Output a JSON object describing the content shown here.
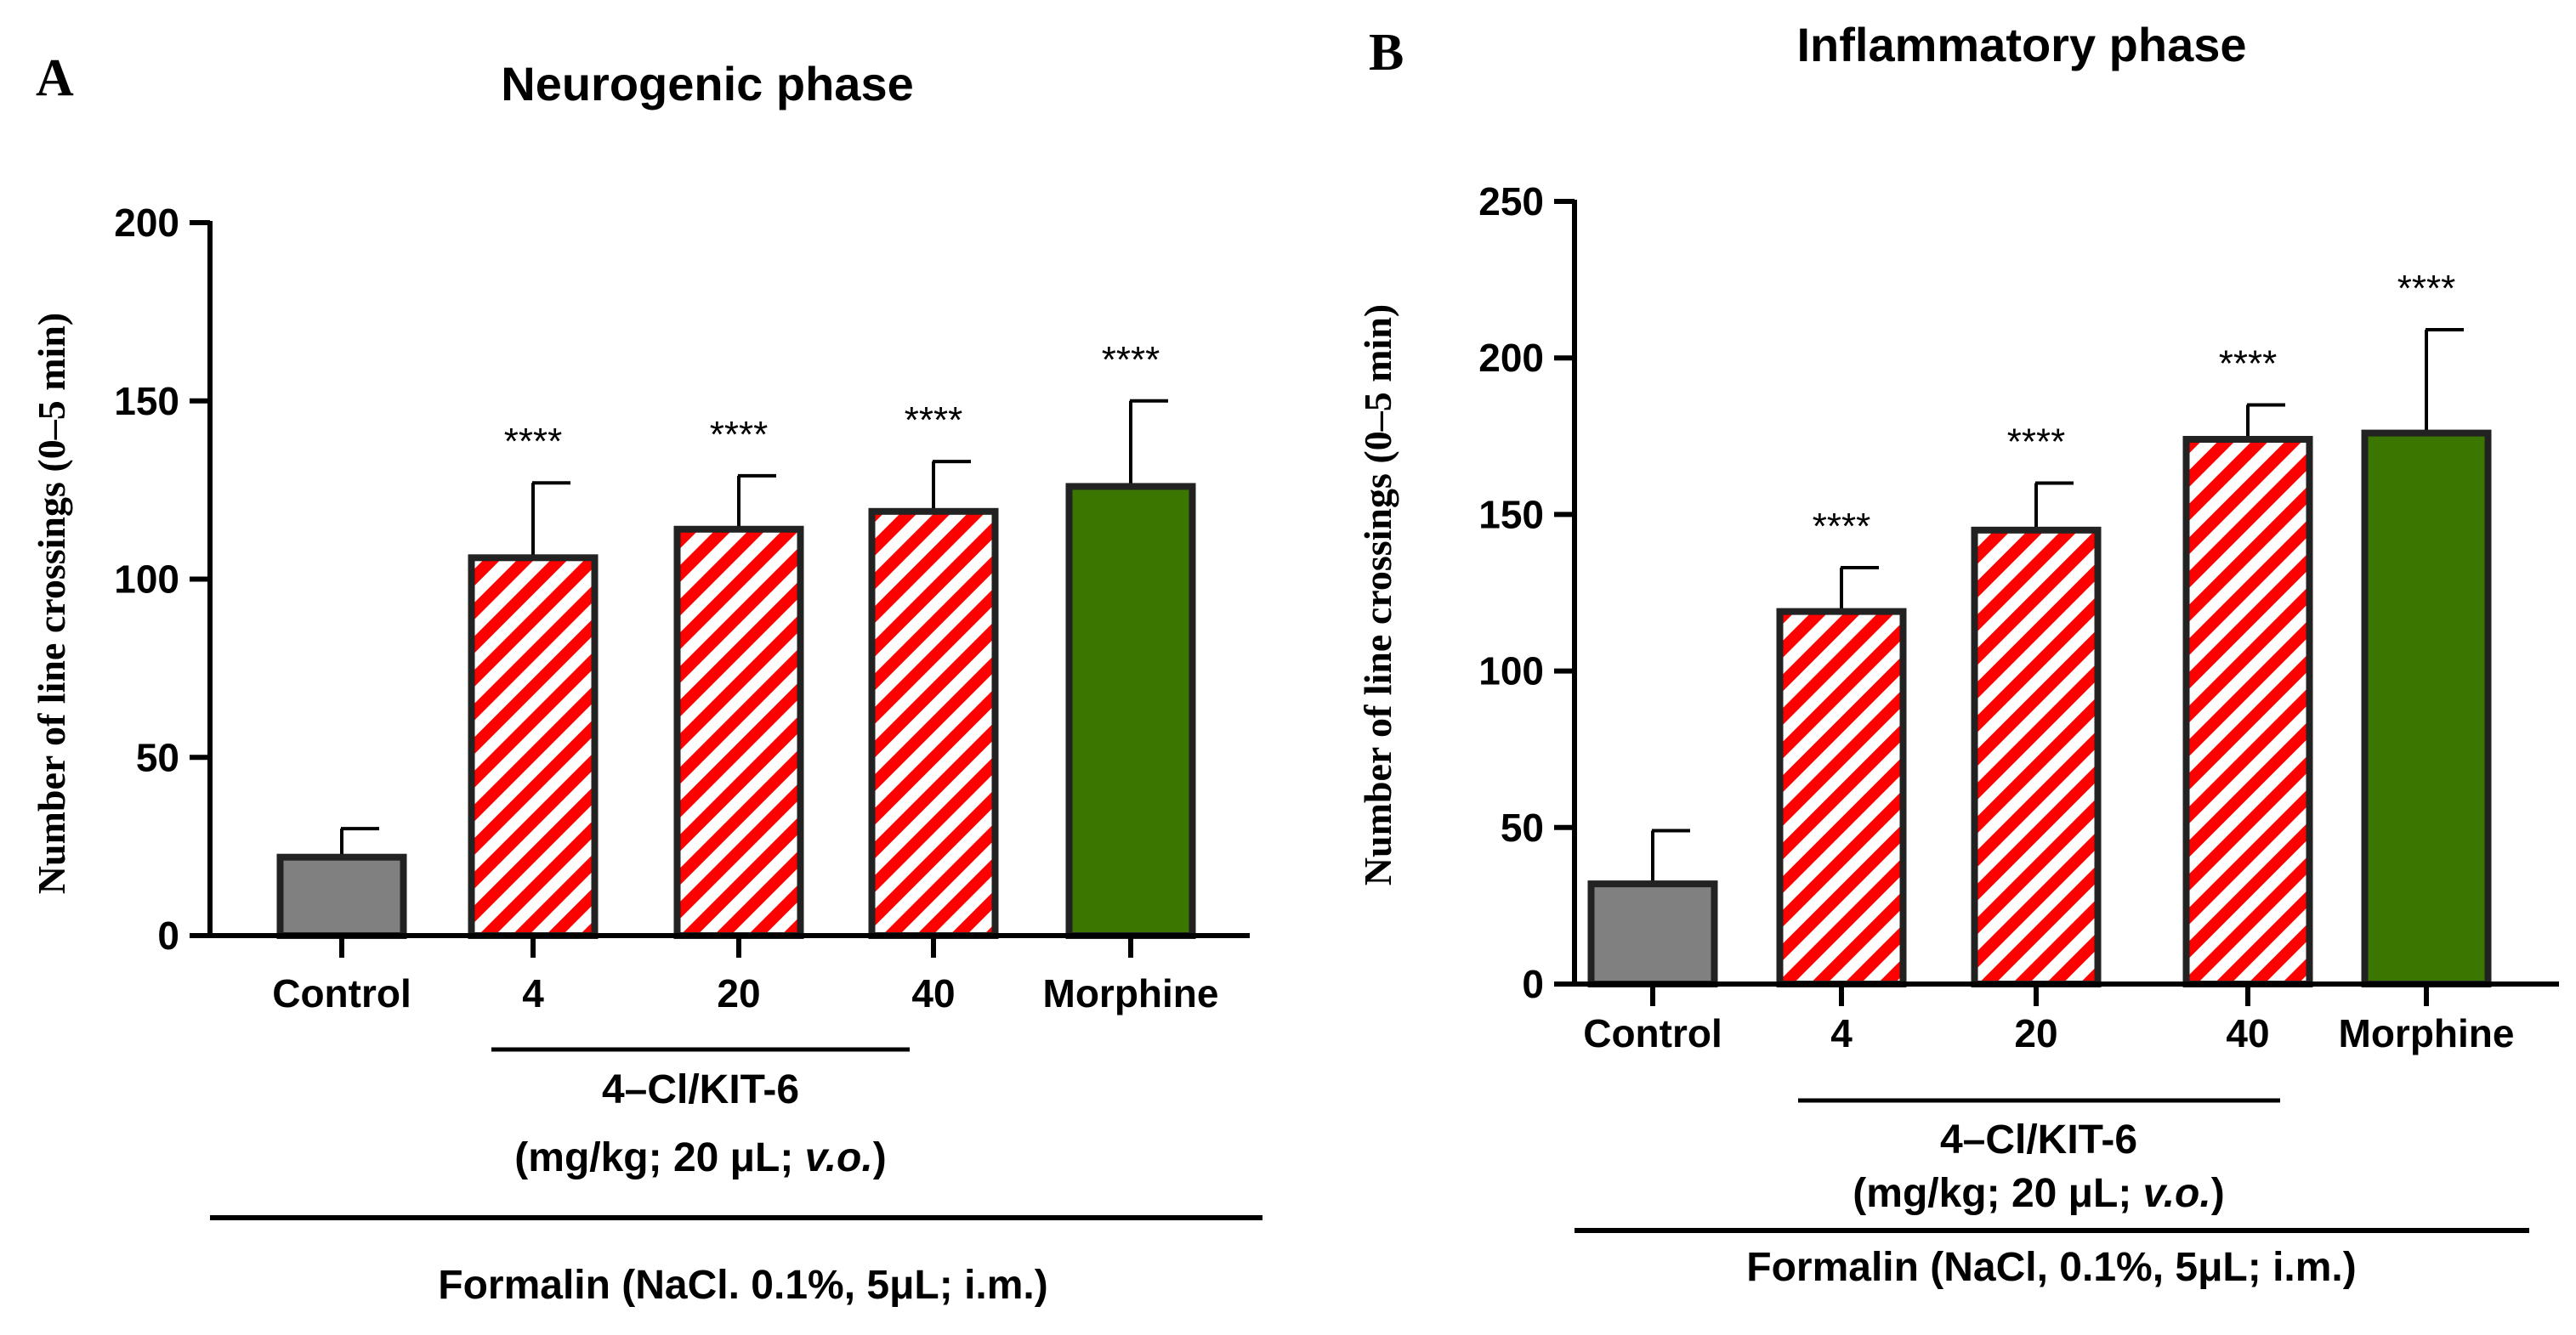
{
  "colors": {
    "control": "#808080",
    "treatment_stripe_red": "#ff0000",
    "treatment_stripe_white": "#ffffff",
    "morphine": "#3a7600",
    "axis": "#000000",
    "bar_outline": "#222222"
  },
  "chart_data": [
    {
      "panel_letter": "A",
      "type": "bar",
      "title": "Neurogenic phase",
      "ylabel": "Number of line crossings (0–5 min)",
      "ylim": [
        0,
        200
      ],
      "yticks": [
        0,
        50,
        100,
        150,
        200
      ],
      "categories": [
        "Control",
        "4",
        "20",
        "40",
        "Morphine"
      ],
      "values": [
        22,
        106,
        114,
        119,
        126
      ],
      "errors": [
        8,
        21,
        15,
        14,
        24
      ],
      "significance": [
        "",
        "****",
        "****",
        "****",
        "****"
      ],
      "fills": [
        "control",
        "stripe",
        "stripe",
        "stripe",
        "morphine"
      ],
      "group_label_line1": "4–Cl/KIT-6",
      "group_label_line2_prefix": "(mg/kg; 20 μL; ",
      "group_label_line2_italic": "v.o.",
      "group_label_line2_suffix": ")",
      "footer": "Formalin (NaCl. 0.1%, 5μL; i.m.)"
    },
    {
      "panel_letter": "B",
      "type": "bar",
      "title": "Inflammatory phase",
      "ylabel": "Number of line crossings (0–5 min)",
      "ylim": [
        0,
        250
      ],
      "yticks": [
        0,
        50,
        100,
        150,
        200,
        250
      ],
      "categories": [
        "Control",
        "4",
        "20",
        "40",
        "Morphine"
      ],
      "values": [
        32,
        119,
        145,
        174,
        176
      ],
      "errors": [
        17,
        14,
        15,
        11,
        33
      ],
      "significance": [
        "",
        "****",
        "****",
        "****",
        "****"
      ],
      "fills": [
        "control",
        "stripe",
        "stripe",
        "stripe",
        "morphine"
      ],
      "group_label_line1": "4–Cl/KIT-6",
      "group_label_line2_prefix": "(mg/kg; 20 μL; ",
      "group_label_line2_italic": "v.o.",
      "group_label_line2_suffix": ")",
      "footer": "Formalin (NaCl, 0.1%, 5μL; i.m.)"
    }
  ]
}
